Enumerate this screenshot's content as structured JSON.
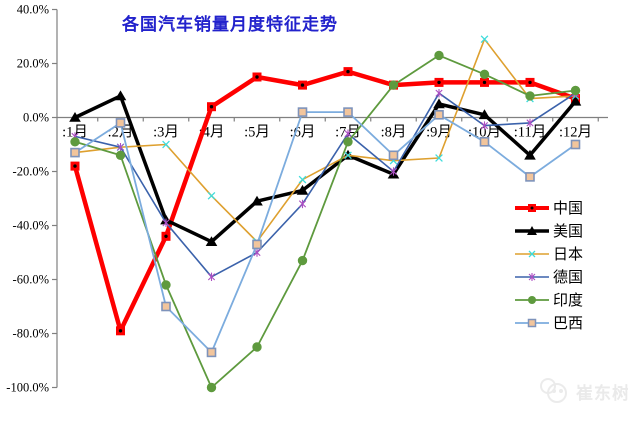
{
  "title": "各国汽车销量月度特征走势",
  "title_color": "#2222cc",
  "watermark": {
    "text": "崔东树",
    "icon": "panda-logo"
  },
  "chart_data": {
    "type": "line",
    "title": "各国汽车销量月度特征走势",
    "categories": [
      ":1月",
      ":2月",
      ":3月",
      ":4月",
      ":5月",
      ":6月",
      ":7月",
      ":8月",
      ":9月",
      ":10月",
      ":11月",
      ":12月"
    ],
    "y_tick_values": [
      40,
      20,
      0,
      -20,
      -40,
      -60,
      -80,
      -100
    ],
    "y_tick_labels": [
      "40.0%",
      "20.0%",
      "0.0%",
      "-20.0%",
      "-40.0%",
      "-60.0%",
      "-80.0%",
      "-100.0%"
    ],
    "ylim": [
      -100,
      40
    ],
    "unit": "percent",
    "grid": false,
    "legend_position": "right-inside",
    "series": [
      {
        "id": "china",
        "name": "中国",
        "color": "#fe0000",
        "line_width": 4.5,
        "marker": "square-dot",
        "marker_color": "#fe0000",
        "values": [
          -18,
          -79,
          -44,
          4,
          15,
          12,
          17,
          12,
          13,
          13,
          13,
          7
        ]
      },
      {
        "id": "usa",
        "name": "美国",
        "color": "#000000",
        "line_width": 3.5,
        "marker": "triangle",
        "marker_color": "#000000",
        "values": [
          0,
          8,
          -38,
          -46,
          -31,
          -27,
          -14,
          -21,
          5,
          1,
          -14,
          6
        ]
      },
      {
        "id": "japan",
        "name": "日本",
        "color": "#dea02f",
        "line_width": 1.6,
        "marker": "x-cross",
        "marker_color": "#3edcdc",
        "values": [
          -13,
          -11,
          -10,
          -29,
          -46,
          -23,
          -14,
          -16,
          -15,
          29,
          7,
          8
        ]
      },
      {
        "id": "germany",
        "name": "德国",
        "color": "#3b62ab",
        "line_width": 1.6,
        "marker": "asterisk",
        "marker_color": "#ac4ec2",
        "values": [
          -7,
          -11,
          -39,
          -59,
          -50,
          -32,
          -6,
          -20,
          9,
          -3,
          -2,
          9
        ]
      },
      {
        "id": "india",
        "name": "印度",
        "color": "#5e9a3e",
        "line_width": 1.8,
        "marker": "circle",
        "marker_color": "#5e9a3e",
        "values": [
          -9,
          -14,
          -62,
          -100,
          -85,
          -53,
          -9,
          12,
          23,
          16,
          8,
          10
        ]
      },
      {
        "id": "brazil",
        "name": "巴西",
        "color": "#7cacde",
        "line_width": 1.8,
        "marker": "square-outline",
        "marker_color": "#f2c59c",
        "marker_stroke": "#7e93bb",
        "values": [
          -13,
          -2,
          -70,
          -87,
          -47,
          2,
          2,
          -14,
          1,
          -9,
          -22,
          -10
        ]
      }
    ],
    "axis_color": "#808080"
  }
}
